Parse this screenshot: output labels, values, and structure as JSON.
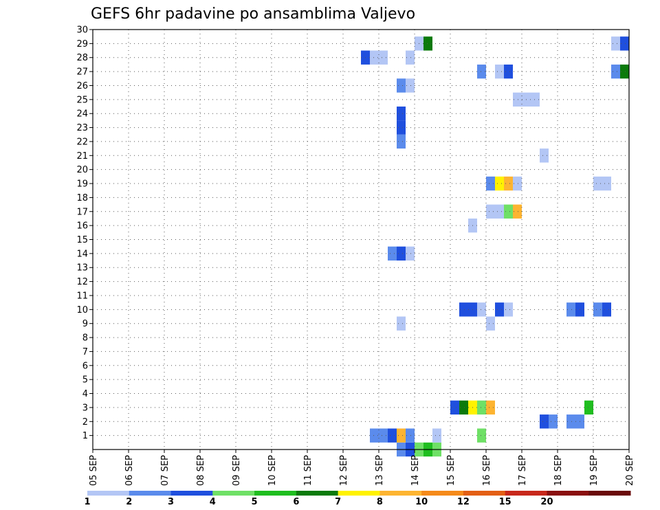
{
  "chart_data": {
    "type": "heatmap",
    "title": "GEFS 6hr padavine po ansamblima Valjevo",
    "xlabel": "",
    "ylabel": "",
    "x_tick_labels": [
      "05 SEP",
      "06 SEP",
      "07 SEP",
      "08 SEP",
      "09 SEP",
      "10 SEP",
      "11 SEP",
      "12 SEP",
      "13 SEP",
      "14 SEP",
      "15 SEP",
      "16 SEP",
      "17 SEP",
      "18 SEP",
      "19 SEP",
      "20 SEP"
    ],
    "x_range_days": [
      5,
      20
    ],
    "time_step_hours": 6,
    "y_tick_labels": [
      1,
      2,
      3,
      4,
      5,
      6,
      7,
      8,
      9,
      10,
      11,
      12,
      13,
      14,
      15,
      16,
      17,
      18,
      19,
      20,
      21,
      22,
      23,
      24,
      25,
      26,
      27,
      28,
      29,
      30
    ],
    "ylim": [
      0,
      30
    ],
    "grid": true,
    "colorbar": {
      "labels": [
        "1",
        "2",
        "3",
        "4",
        "5",
        "6",
        "7",
        "8",
        "10",
        "12",
        "15",
        "20"
      ],
      "colors": [
        "#b3c6f5",
        "#5b8bec",
        "#1f4fde",
        "#6fe066",
        "#1fbe1f",
        "#0b7a0b",
        "#fff200",
        "#fdb431",
        "#f58a1a",
        "#e35f15",
        "#c8281b",
        "#8a0f0f",
        "#6a0a0a"
      ]
    },
    "cells": [
      {
        "m": 0,
        "d": 13.75,
        "c": 1
      },
      {
        "m": 0,
        "d": 14.0,
        "c": 2
      },
      {
        "m": 0,
        "d": 14.25,
        "c": 3
      },
      {
        "m": 0,
        "d": 14.5,
        "c": 4
      },
      {
        "m": 0,
        "d": 14.75,
        "c": 3
      },
      {
        "m": 1,
        "d": 13.0,
        "c": 1
      },
      {
        "m": 1,
        "d": 13.25,
        "c": 1
      },
      {
        "m": 1,
        "d": 13.5,
        "c": 2
      },
      {
        "m": 1,
        "d": 13.75,
        "c": 7
      },
      {
        "m": 1,
        "d": 14.0,
        "c": 1
      },
      {
        "m": 1,
        "d": 14.75,
        "c": 0
      },
      {
        "m": 1,
        "d": 16.0,
        "c": 3
      },
      {
        "m": 2,
        "d": 17.75,
        "c": 2
      },
      {
        "m": 2,
        "d": 18.0,
        "c": 1
      },
      {
        "m": 2,
        "d": 18.5,
        "c": 1
      },
      {
        "m": 2,
        "d": 18.75,
        "c": 1
      },
      {
        "m": 3,
        "d": 15.25,
        "c": 2
      },
      {
        "m": 3,
        "d": 15.5,
        "c": 5
      },
      {
        "m": 3,
        "d": 15.75,
        "c": 6
      },
      {
        "m": 3,
        "d": 16.0,
        "c": 3
      },
      {
        "m": 3,
        "d": 16.25,
        "c": 7
      },
      {
        "m": 3,
        "d": 19.0,
        "c": 4
      },
      {
        "m": 9,
        "d": 13.75,
        "c": 0
      },
      {
        "m": 9,
        "d": 16.25,
        "c": 0
      },
      {
        "m": 10,
        "d": 15.5,
        "c": 2
      },
      {
        "m": 10,
        "d": 15.75,
        "c": 2
      },
      {
        "m": 10,
        "d": 16.0,
        "c": 0
      },
      {
        "m": 10,
        "d": 16.5,
        "c": 2
      },
      {
        "m": 10,
        "d": 16.75,
        "c": 0
      },
      {
        "m": 10,
        "d": 18.5,
        "c": 1
      },
      {
        "m": 10,
        "d": 18.75,
        "c": 2
      },
      {
        "m": 10,
        "d": 19.25,
        "c": 1
      },
      {
        "m": 10,
        "d": 19.5,
        "c": 2
      },
      {
        "m": 14,
        "d": 13.5,
        "c": 1
      },
      {
        "m": 14,
        "d": 13.75,
        "c": 2
      },
      {
        "m": 14,
        "d": 14.0,
        "c": 0
      },
      {
        "m": 16,
        "d": 15.75,
        "c": 0
      },
      {
        "m": 17,
        "d": 16.25,
        "c": 0
      },
      {
        "m": 17,
        "d": 16.5,
        "c": 0
      },
      {
        "m": 17,
        "d": 16.75,
        "c": 3
      },
      {
        "m": 17,
        "d": 17.0,
        "c": 7
      },
      {
        "m": 19,
        "d": 16.25,
        "c": 1
      },
      {
        "m": 19,
        "d": 16.5,
        "c": 6
      },
      {
        "m": 19,
        "d": 16.75,
        "c": 7
      },
      {
        "m": 19,
        "d": 17.0,
        "c": 0
      },
      {
        "m": 19,
        "d": 19.25,
        "c": 0
      },
      {
        "m": 19,
        "d": 19.5,
        "c": 0
      },
      {
        "m": 21,
        "d": 17.75,
        "c": 0
      },
      {
        "m": 22,
        "d": 13.75,
        "c": 1
      },
      {
        "m": 23,
        "d": 13.75,
        "c": 2
      },
      {
        "m": 24,
        "d": 13.75,
        "c": 2
      },
      {
        "m": 25,
        "d": 17.0,
        "c": 0
      },
      {
        "m": 25,
        "d": 17.25,
        "c": 0
      },
      {
        "m": 25,
        "d": 17.5,
        "c": 0
      },
      {
        "m": 26,
        "d": 13.75,
        "c": 1
      },
      {
        "m": 26,
        "d": 14.0,
        "c": 0
      },
      {
        "m": 27,
        "d": 16.0,
        "c": 1
      },
      {
        "m": 27,
        "d": 16.5,
        "c": 0
      },
      {
        "m": 27,
        "d": 16.75,
        "c": 2
      },
      {
        "m": 27,
        "d": 19.75,
        "c": 1
      },
      {
        "m": 27,
        "d": 20.0,
        "c": 5
      },
      {
        "m": 28,
        "d": 12.75,
        "c": 2
      },
      {
        "m": 28,
        "d": 13.0,
        "c": 0
      },
      {
        "m": 28,
        "d": 13.25,
        "c": 0
      },
      {
        "m": 28,
        "d": 14.0,
        "c": 0
      },
      {
        "m": 29,
        "d": 14.25,
        "c": 0
      },
      {
        "m": 29,
        "d": 14.5,
        "c": 5
      },
      {
        "m": 29,
        "d": 19.75,
        "c": 0
      },
      {
        "m": 29,
        "d": 20.0,
        "c": 2
      }
    ]
  }
}
